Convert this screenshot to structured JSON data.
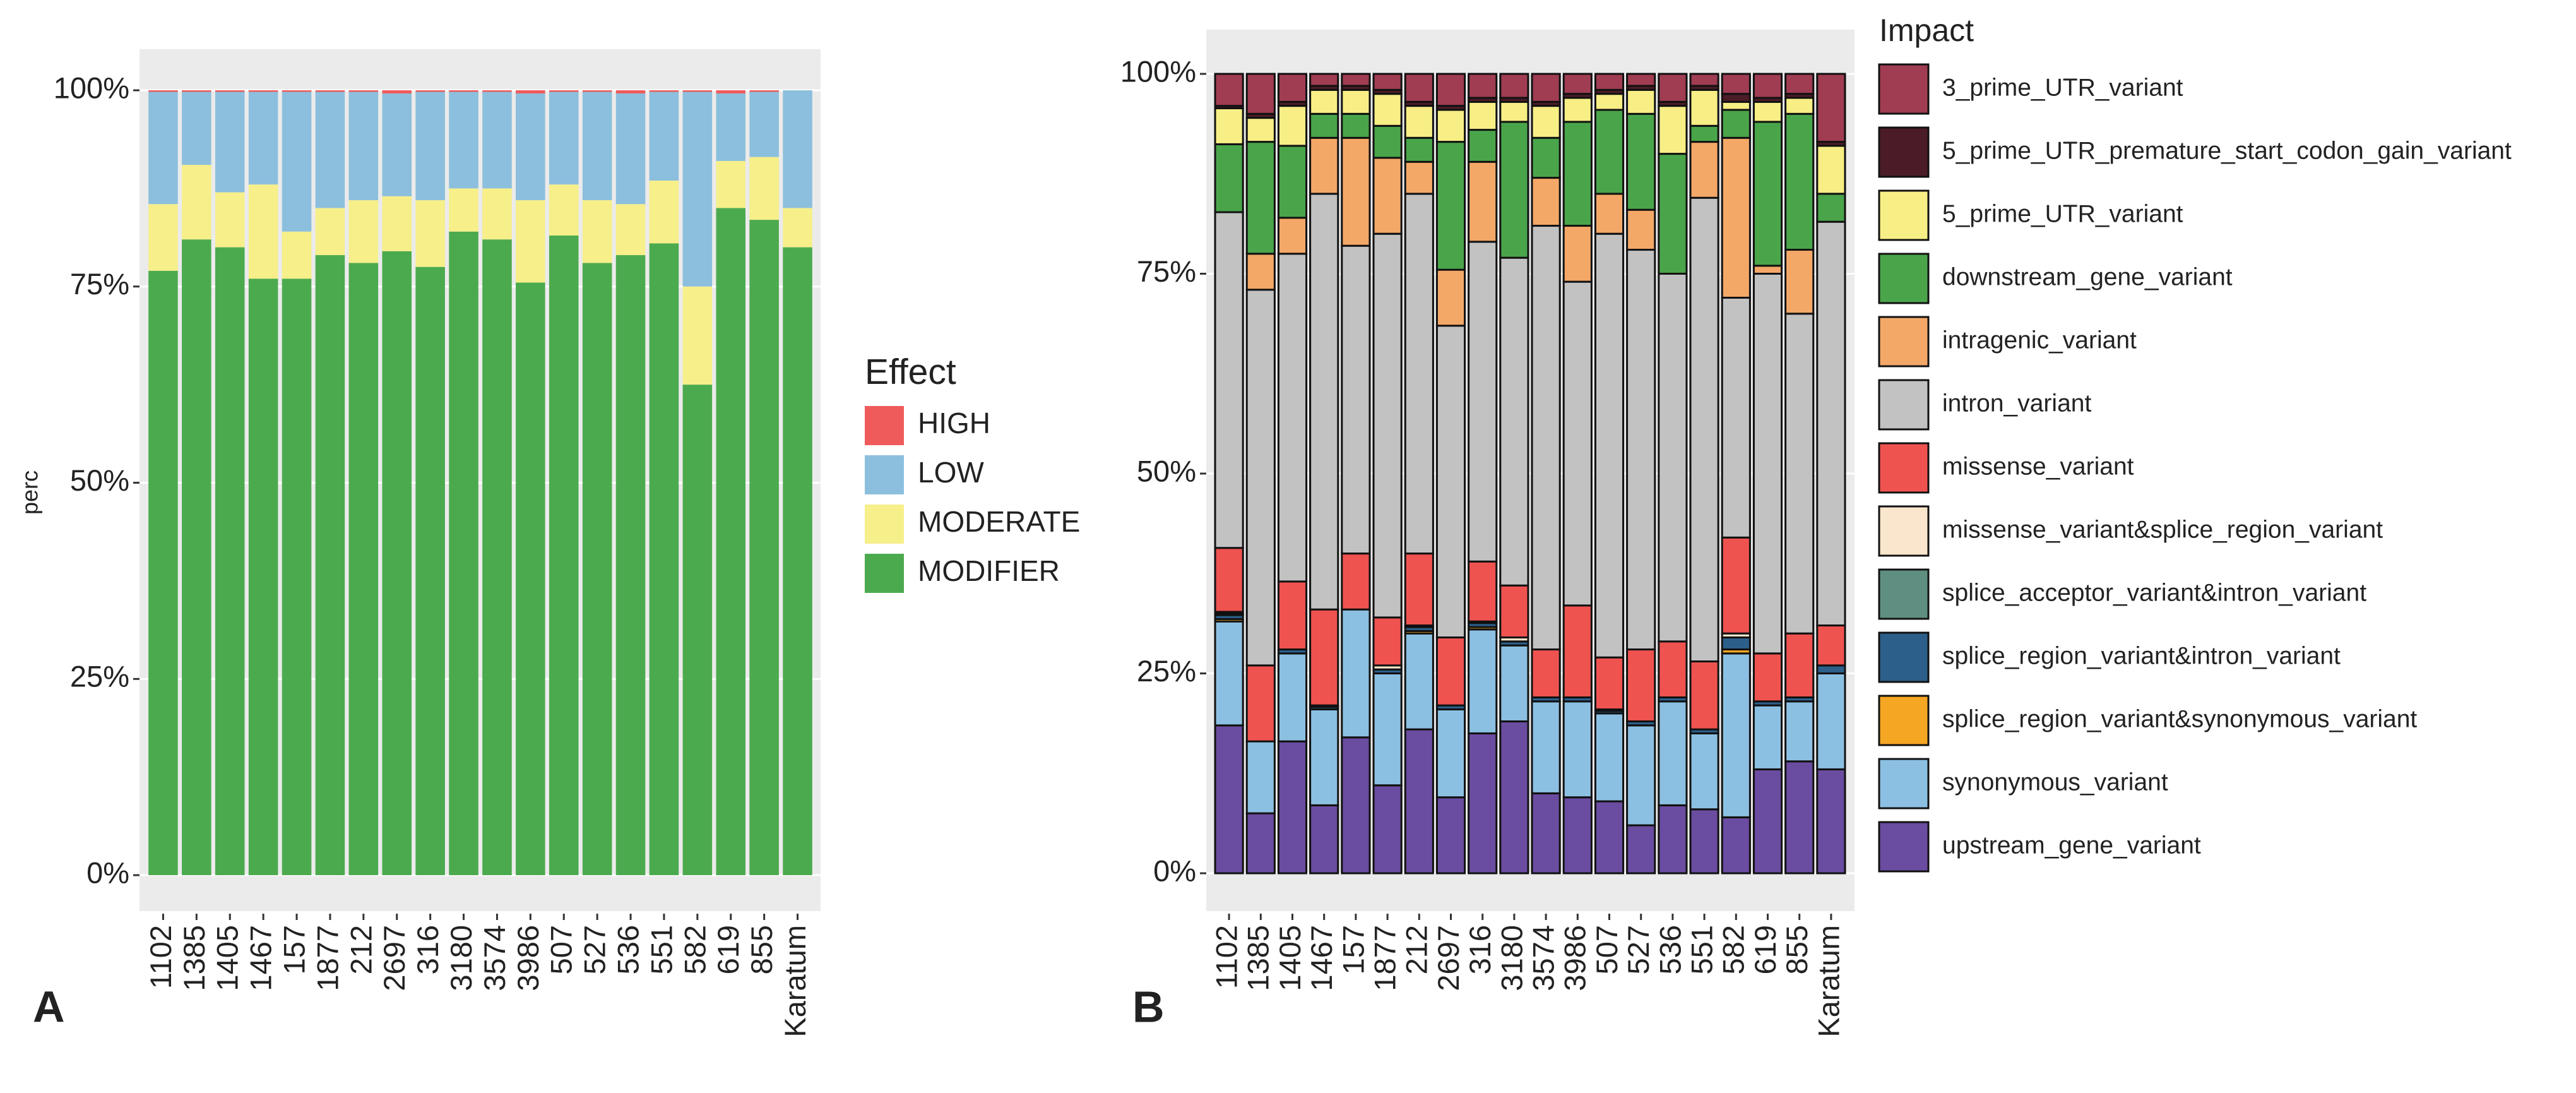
{
  "chart_data": [
    {
      "type": "bar",
      "stacked": true,
      "panel_label": "A",
      "y_label": "perc",
      "legend_title": "Effect",
      "outline": false,
      "grid": true,
      "categories": [
        "1102",
        "1385",
        "1405",
        "1467",
        "157",
        "1877",
        "212",
        "2697",
        "316",
        "3180",
        "3574",
        "3986",
        "507",
        "527",
        "536",
        "551",
        "582",
        "619",
        "855",
        "Karatum"
      ],
      "ylim": [
        0,
        100
      ],
      "yticks": [
        {
          "value": 0,
          "label": "0%"
        },
        {
          "value": 25,
          "label": "25%"
        },
        {
          "value": 50,
          "label": "50%"
        },
        {
          "value": 75,
          "label": "75%"
        },
        {
          "value": 100,
          "label": "100%"
        }
      ],
      "series": [
        {
          "name": "HIGH",
          "color": "#ef5b5b",
          "values": [
            0.2,
            0.2,
            0.2,
            0.2,
            0.2,
            0.2,
            0.2,
            0.4,
            0.2,
            0.2,
            0.2,
            0.4,
            0.2,
            0.2,
            0.4,
            0.2,
            0.2,
            0.4,
            0.2,
            0
          ]
        },
        {
          "name": "LOW",
          "color": "#8cbfdd",
          "values": [
            14.3,
            9.3,
            12.8,
            11.8,
            17.8,
            14.8,
            13.8,
            13.1,
            13.8,
            12.3,
            12.3,
            13.6,
            11.8,
            13.8,
            14.1,
            11.3,
            24.8,
            8.6,
            8.3,
            15
          ]
        },
        {
          "name": "MODERATE",
          "color": "#f6ef8a",
          "values": [
            8.5,
            9.5,
            7,
            12,
            6,
            6,
            8,
            7,
            8.5,
            5.5,
            6.5,
            10.5,
            6.5,
            8,
            6.5,
            8,
            12.5,
            6,
            8,
            5
          ]
        },
        {
          "name": "MODIFIER",
          "color": "#4caa4e",
          "values": [
            77,
            81,
            80,
            76,
            76,
            79,
            78,
            79.5,
            77.5,
            82,
            81,
            75.5,
            81.5,
            78,
            79,
            80.5,
            62.5,
            85,
            83.5,
            80
          ]
        }
      ]
    },
    {
      "type": "bar",
      "stacked": true,
      "panel_label": "B",
      "legend_title": "Impact",
      "outline": true,
      "grid": true,
      "categories": [
        "1102",
        "1385",
        "1405",
        "1467",
        "157",
        "1877",
        "212",
        "2697",
        "316",
        "3180",
        "3574",
        "3986",
        "507",
        "527",
        "536",
        "551",
        "582",
        "619",
        "855",
        "Karatum"
      ],
      "ylim": [
        0,
        100
      ],
      "yticks": [
        {
          "value": 0,
          "label": "0%"
        },
        {
          "value": 25,
          "label": "25%"
        },
        {
          "value": 50,
          "label": "50%"
        },
        {
          "value": 75,
          "label": "75%"
        },
        {
          "value": 100,
          "label": "100%"
        }
      ],
      "series": [
        {
          "name": "3_prime_UTR_variant",
          "color": "#a03d52",
          "values": [
            4,
            5,
            3.5,
            1.5,
            1.5,
            2,
            3.5,
            4,
            3,
            3,
            3.5,
            2.5,
            2,
            1.5,
            3.5,
            1.5,
            2.5,
            3,
            2.5,
            8.5
          ]
        },
        {
          "name": "5_prime_UTR_premature_start_codon_gain_variant",
          "color": "#4b1c27",
          "values": [
            0.3,
            0.5,
            0.5,
            0.5,
            0.5,
            0.5,
            0.5,
            0.5,
            0.5,
            0.5,
            0.5,
            0.5,
            0.5,
            0.5,
            0.5,
            0.5,
            1,
            0.5,
            0.5,
            0.5
          ]
        },
        {
          "name": "5_prime_UTR_variant",
          "color": "#f7ef85",
          "values": [
            4.5,
            3,
            5,
            3,
            3,
            4,
            4,
            4,
            3.5,
            2.5,
            4,
            3,
            2,
            3,
            6,
            4.5,
            1,
            2.5,
            2,
            6
          ]
        },
        {
          "name": "downstream_gene_variant",
          "color": "#4aa54a",
          "values": [
            8.5,
            14,
            9,
            3,
            3,
            4,
            3,
            16,
            4,
            17,
            5,
            13,
            10.5,
            12,
            15,
            2,
            3.5,
            18,
            17,
            3.5
          ]
        },
        {
          "name": "intragenic_variant",
          "color": "#f4a868",
          "values": [
            0,
            4.5,
            4.5,
            7,
            13.5,
            9.5,
            4,
            7,
            10,
            0,
            6,
            7,
            5,
            5,
            0,
            7,
            20,
            1,
            8,
            0
          ]
        },
        {
          "name": "intron_variant",
          "color": "#c2c2c2",
          "values": [
            42,
            47,
            41,
            52,
            38.5,
            48,
            45,
            39,
            40,
            41,
            53,
            40.5,
            53,
            50,
            46,
            58,
            30,
            47.5,
            40,
            50.5
          ]
        },
        {
          "name": "missense_variant",
          "color": "#ef5350",
          "values": [
            8,
            9.5,
            8.5,
            12,
            7,
            6,
            9,
            8.5,
            7.5,
            6.5,
            6,
            11.5,
            6.5,
            9,
            7,
            8.5,
            12,
            6,
            8,
            5
          ]
        },
        {
          "name": "missense_variant&splice_region_variant",
          "color": "#f9e6cc",
          "values": [
            0.2,
            0,
            0,
            0.2,
            0,
            0.5,
            0.2,
            0,
            0.2,
            0.5,
            0,
            0,
            0.2,
            0,
            0,
            0,
            0.5,
            0,
            0,
            0
          ]
        },
        {
          "name": "splice_acceptor_variant&intron_variant",
          "color": "#5f8f80",
          "values": [
            0.2,
            0,
            0,
            0,
            0,
            0,
            0,
            0,
            0,
            0,
            0,
            0,
            0,
            0,
            0,
            0,
            0,
            0,
            0,
            0
          ]
        },
        {
          "name": "splice_region_variant&intron_variant",
          "color": "#2c5f8a",
          "values": [
            0.5,
            0,
            0.5,
            0.3,
            0,
            0.5,
            0.5,
            0.5,
            0.5,
            0.5,
            0.5,
            0.5,
            0.3,
            0.5,
            0.5,
            0.5,
            1.5,
            0.5,
            0.5,
            1
          ]
        },
        {
          "name": "splice_region_variant&synonymous_variant",
          "color": "#f5a623",
          "values": [
            0.3,
            0,
            0,
            0,
            0,
            0,
            0.3,
            0,
            0.3,
            0,
            0,
            0,
            0,
            0,
            0,
            0,
            0.5,
            0,
            0,
            0
          ]
        },
        {
          "name": "synonymous_variant",
          "color": "#8cc0e2",
          "values": [
            13,
            9,
            11,
            12,
            16,
            14,
            12,
            11,
            13,
            9.5,
            11.5,
            12,
            11,
            12.5,
            13,
            9.5,
            20.5,
            8,
            7.5,
            12
          ]
        },
        {
          "name": "upstream_gene_variant",
          "color": "#6a4ca0",
          "values": [
            18.5,
            7.5,
            16.5,
            8.5,
            17,
            11,
            18,
            9.5,
            17.5,
            19,
            10,
            9.5,
            9,
            6,
            8.5,
            8,
            7,
            13,
            14,
            13
          ]
        }
      ]
    }
  ]
}
